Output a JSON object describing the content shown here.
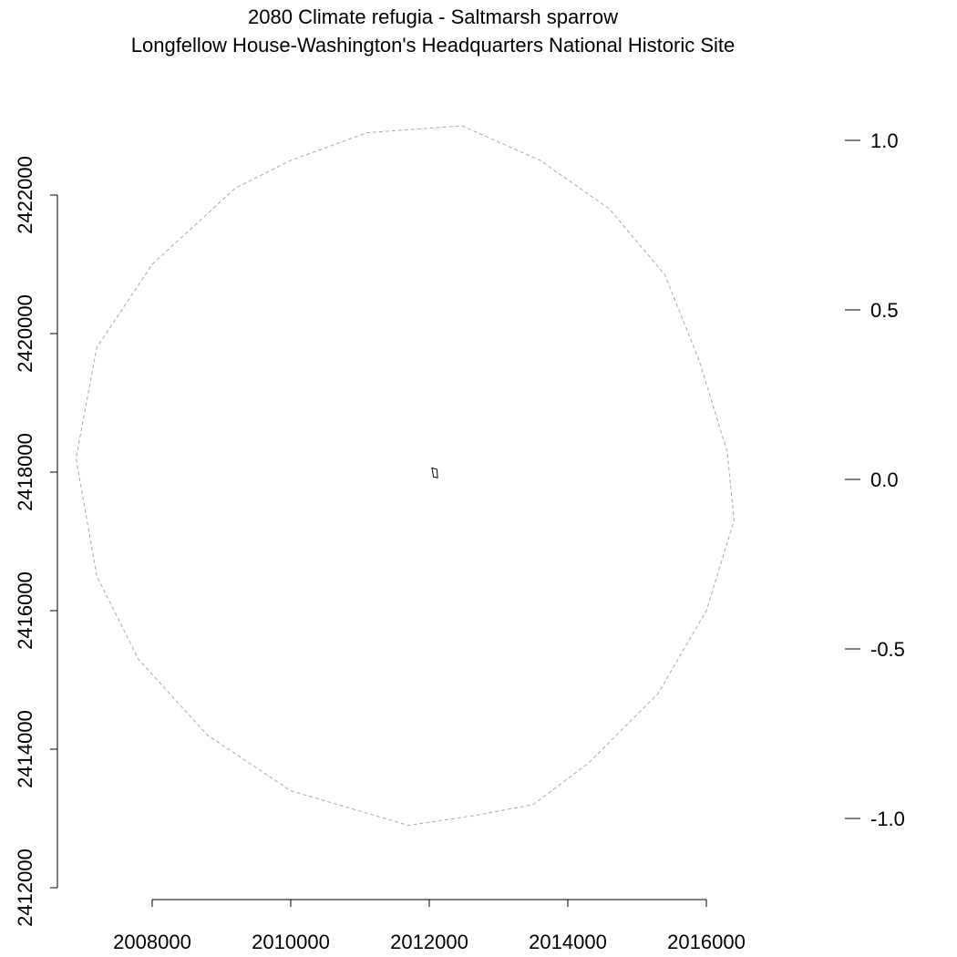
{
  "chart_data": {
    "type": "map",
    "title": "2080 Climate refugia - Saltmarsh sparrow",
    "subtitle": "Longfellow House-Washington's Headquarters National Historic Site",
    "x_axis": {
      "ticks": [
        2008000,
        2010000,
        2012000,
        2014000,
        2016000
      ],
      "tick_labels": [
        "2008000",
        "2010000",
        "2012000",
        "2014000",
        "2016000"
      ],
      "range": [
        2008000,
        2016000
      ]
    },
    "y_axis": {
      "ticks": [
        2412000,
        2414000,
        2416000,
        2418000,
        2420000,
        2422000
      ],
      "tick_labels": [
        "2412000",
        "2414000",
        "2416000",
        "2418000",
        "2420000",
        "2422000"
      ],
      "range": [
        2412000,
        2422000
      ]
    },
    "legend": {
      "position": "right",
      "ticks": [
        1.0,
        0.5,
        0.0,
        -0.5,
        -1.0
      ],
      "tick_labels": [
        "1.0",
        "0.5",
        "0.0",
        "-0.5",
        "-1.0"
      ],
      "range": [
        -1.0,
        1.0
      ]
    },
    "series": [
      {
        "type": "buffer-outline",
        "style": "dashed",
        "color": "#aaaaaa",
        "points": [
          [
            2012470,
            2423000
          ],
          [
            2013600,
            2422500
          ],
          [
            2014600,
            2421800
          ],
          [
            2015400,
            2420850
          ],
          [
            2015900,
            2419600
          ],
          [
            2016300,
            2418300
          ],
          [
            2016400,
            2417300
          ],
          [
            2016000,
            2416000
          ],
          [
            2015300,
            2414800
          ],
          [
            2014300,
            2413800
          ],
          [
            2013500,
            2413200
          ],
          [
            2012700,
            2413050
          ],
          [
            2011700,
            2412900
          ],
          [
            2010000,
            2413400
          ],
          [
            2008800,
            2414200
          ],
          [
            2007800,
            2415300
          ],
          [
            2007200,
            2416500
          ],
          [
            2006900,
            2418200
          ],
          [
            2007200,
            2419800
          ],
          [
            2008000,
            2421000
          ],
          [
            2009200,
            2422100
          ],
          [
            2010000,
            2422500
          ],
          [
            2011100,
            2422900
          ]
        ]
      },
      {
        "type": "park-boundary",
        "style": "solid",
        "color": "#000000",
        "points": [
          [
            2012040,
            2418060
          ],
          [
            2012110,
            2418040
          ],
          [
            2012120,
            2417920
          ],
          [
            2012060,
            2417930
          ],
          [
            2012040,
            2418060
          ]
        ]
      }
    ]
  }
}
